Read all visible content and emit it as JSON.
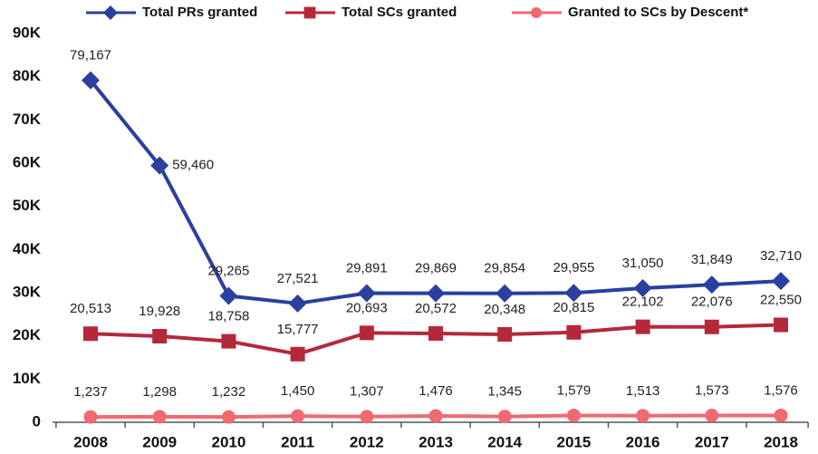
{
  "chart_data": {
    "type": "line",
    "categories": [
      "2008",
      "2009",
      "2010",
      "2011",
      "2012",
      "2013",
      "2014",
      "2015",
      "2016",
      "2017",
      "2018"
    ],
    "series": [
      {
        "name": "Total PRs granted",
        "color": "#2a3f9e",
        "marker": "diamond",
        "values": [
          79167,
          59460,
          29265,
          27521,
          29891,
          29869,
          29854,
          29955,
          31050,
          31849,
          32710
        ],
        "value_labels": [
          "79,167",
          "59,460",
          "29,265",
          "27,521",
          "29,891",
          "29,869",
          "29,854",
          "29,955",
          "31,050",
          "31,849",
          "32,710"
        ]
      },
      {
        "name": "Total SCs granted",
        "color": "#b5283a",
        "marker": "square",
        "values": [
          20513,
          19928,
          18758,
          15777,
          20693,
          20572,
          20348,
          20815,
          22102,
          22076,
          22550
        ],
        "value_labels": [
          "20,513",
          "19,928",
          "18,758",
          "15,777",
          "20,693",
          "20,572",
          "20,348",
          "20,815",
          "22,102",
          "22,076",
          "22,550"
        ]
      },
      {
        "name": "Granted to SCs by Descent*",
        "color": "#f06a72",
        "marker": "circle",
        "values": [
          1237,
          1298,
          1232,
          1450,
          1307,
          1476,
          1345,
          1579,
          1513,
          1573,
          1576
        ],
        "value_labels": [
          "1,237",
          "1,298",
          "1,232",
          "1,450",
          "1,307",
          "1,476",
          "1,345",
          "1,579",
          "1,513",
          "1,573",
          "1,576"
        ]
      }
    ],
    "ylim": [
      0,
      90000
    ],
    "yticks": [
      0,
      {
        "value": 10000,
        "label": "10K"
      },
      {
        "value": 20000,
        "label": "20K"
      },
      {
        "value": 30000,
        "label": "30K"
      },
      {
        "value": 40000,
        "label": "40K"
      },
      {
        "value": 50000,
        "label": "50K"
      },
      {
        "value": 60000,
        "label": "60K"
      },
      {
        "value": 70000,
        "label": "70K"
      },
      {
        "value": 80000,
        "label": "80K"
      },
      {
        "value": 90000,
        "label": "90K"
      }
    ],
    "legend": "top",
    "grid": false
  }
}
